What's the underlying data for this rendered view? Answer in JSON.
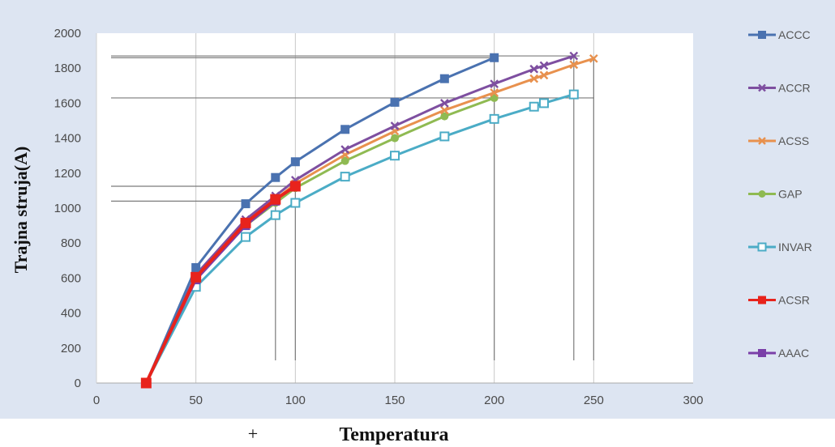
{
  "chart_data": {
    "type": "line",
    "title": "",
    "xlabel": "Temperatura",
    "ylabel": "Trajna struja(A)",
    "xlim": [
      0,
      300
    ],
    "ylim": [
      0,
      2000
    ],
    "x_ticks": [
      "0",
      "50",
      "100",
      "150",
      "200",
      "250",
      "300"
    ],
    "y_ticks": [
      "0",
      "200",
      "400",
      "600",
      "800",
      "1000",
      "1200",
      "1400",
      "1600",
      "1800",
      "2000"
    ],
    "grid": "vertical",
    "legend_position": "right",
    "x_label_prefix": "+",
    "series": [
      {
        "name": "ACCC",
        "color": "#4a72b0",
        "marker": "square",
        "x": [
          25,
          50,
          75,
          90,
          100,
          125,
          150,
          175,
          200
        ],
        "y": [
          0,
          660,
          1025,
          1175,
          1265,
          1450,
          1605,
          1740,
          1860
        ]
      },
      {
        "name": "ACCR",
        "color": "#7e4fa0",
        "marker": "cross",
        "x": [
          25,
          50,
          75,
          90,
          100,
          125,
          150,
          175,
          200,
          220,
          225,
          240
        ],
        "y": [
          0,
          620,
          935,
          1070,
          1160,
          1335,
          1470,
          1600,
          1710,
          1795,
          1815,
          1870
        ]
      },
      {
        "name": "ACSS",
        "color": "#e8914e",
        "marker": "cross",
        "x": [
          25,
          50,
          75,
          90,
          100,
          125,
          150,
          175,
          200,
          220,
          225,
          240,
          250
        ],
        "y": [
          0,
          610,
          920,
          1050,
          1140,
          1305,
          1440,
          1560,
          1660,
          1740,
          1760,
          1820,
          1855
        ]
      },
      {
        "name": "GAP",
        "color": "#8fba52",
        "marker": "circle",
        "x": [
          25,
          50,
          75,
          90,
          100,
          125,
          150,
          175,
          200
        ],
        "y": [
          0,
          600,
          900,
          1030,
          1115,
          1270,
          1400,
          1525,
          1630
        ]
      },
      {
        "name": "INVAR",
        "color": "#4bacc6",
        "marker": "open-square",
        "x": [
          25,
          50,
          75,
          90,
          100,
          125,
          150,
          175,
          200,
          220,
          225,
          240
        ],
        "y": [
          0,
          550,
          835,
          960,
          1030,
          1180,
          1300,
          1410,
          1510,
          1580,
          1600,
          1650
        ]
      },
      {
        "name": "ACSR",
        "color": "#e8231c",
        "marker": "square",
        "x": [
          25,
          50,
          75,
          90,
          100
        ],
        "y": [
          0,
          605,
          915,
          1050,
          1125
        ]
      },
      {
        "name": "AAAC",
        "color": "#7a3fa8",
        "marker": "square",
        "x": [
          25,
          50,
          75,
          90
        ],
        "y": [
          0,
          590,
          900,
          1040
        ]
      }
    ]
  }
}
